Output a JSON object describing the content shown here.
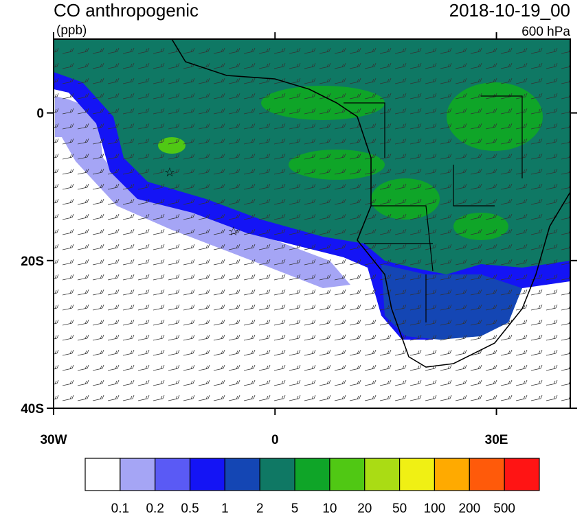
{
  "map": {
    "title": "CO anthropogenic",
    "units": "(ppb)",
    "time": "2018-10-19_00",
    "level": "600 hPa",
    "lonlim": [
      -30,
      40
    ],
    "latlim": [
      -40,
      10
    ],
    "lonticks": [
      {
        "value": -30,
        "label": "30W"
      },
      {
        "value": 0,
        "label": "0"
      },
      {
        "value": 30,
        "label": "30E"
      }
    ],
    "latticks": [
      {
        "value": 0,
        "label": "0"
      },
      {
        "value": -20,
        "label": "20S"
      },
      {
        "value": -40,
        "label": "40S"
      }
    ],
    "colorbar": {
      "colors": [
        "#ffffff",
        "#a5a5f5",
        "#5a5af5",
        "#1414f5",
        "#1446b4",
        "#0f7864",
        "#0fa528",
        "#50c814",
        "#aadc14",
        "#f0f014",
        "#ffaa00",
        "#ff5a0a",
        "#ff1414"
      ],
      "levels": [
        0.1,
        0.2,
        0.5,
        1,
        2,
        5,
        10,
        20,
        50,
        100,
        200,
        500
      ]
    }
  }
}
